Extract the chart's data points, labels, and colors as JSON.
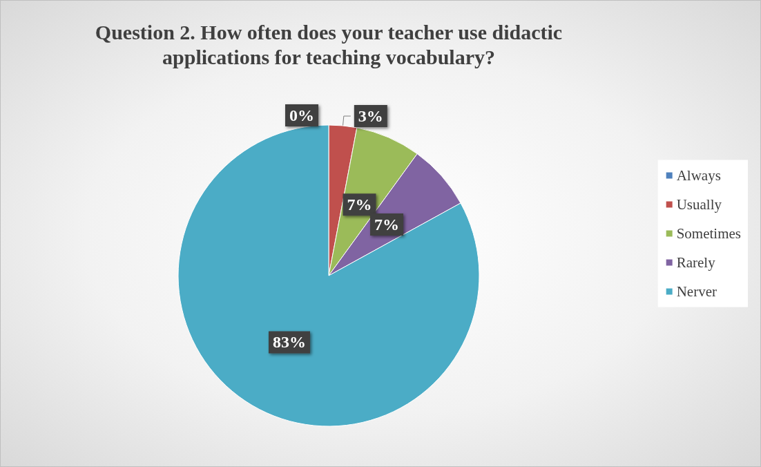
{
  "chart_data": {
    "type": "pie",
    "title": "Question 2. How often does your teacher use didactic\napplications for teaching vocabulary?",
    "categories": [
      "Always",
      "Usually",
      "Sometimes",
      "Rarely",
      "Nerver"
    ],
    "values": [
      0,
      3,
      7,
      7,
      83
    ],
    "colors": [
      "#4f81bd",
      "#c0504d",
      "#9bbb59",
      "#8064a2",
      "#4bacc6"
    ],
    "value_labels": [
      "0%",
      "3%",
      "7%",
      "7%",
      "83%"
    ],
    "legend": "right"
  }
}
